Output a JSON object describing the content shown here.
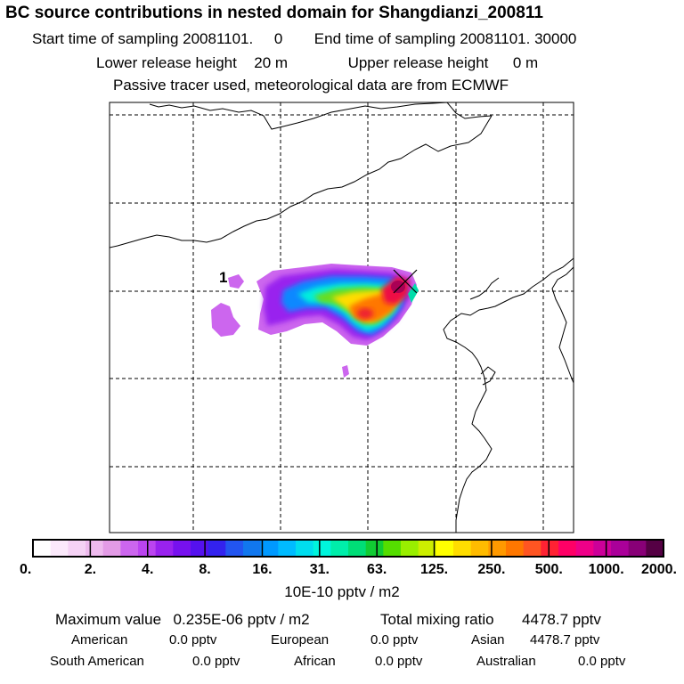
{
  "header": {
    "title": "BC  source contributions in nested domain for Shangdianzi_200811",
    "start_label": "Start time of sampling",
    "start_value": "20081101.     0",
    "end_label": "End time of sampling",
    "end_value": "20081101. 30000",
    "lower_label": "Lower release height",
    "lower_value": "20 m",
    "upper_label": "Upper release height",
    "upper_value": "0 m",
    "tracer_note": "Passive tracer used, meteorological data are from ECMWF"
  },
  "colors": {
    "bins": [
      "#ffffff",
      "#fbe9fb",
      "#f5d2f5",
      "#eebaee",
      "#e39be6",
      "#cc66ee",
      "#bb44f0",
      "#9922ee",
      "#7711ee",
      "#5511ee",
      "#3322ee",
      "#2255f0",
      "#1177ee",
      "#0099ff",
      "#00bbff",
      "#00ddee",
      "#00f5dd",
      "#00eeaa",
      "#00dd77",
      "#11cc33",
      "#55dd00",
      "#99ee00",
      "#ccee00",
      "#ffff00",
      "#ffdd00",
      "#ffbb00",
      "#ff9900",
      "#ff7700",
      "#ff5522",
      "#ff2233",
      "#ff0066",
      "#ee0088",
      "#cc0099",
      "#aa0099",
      "#880077",
      "#550044"
    ],
    "plume_purple": "#9922ee",
    "plume_blue": "#1188ff",
    "plume_cyan": "#00eedd",
    "plume_green": "#66dd22",
    "plume_yellow": "#ffdd00",
    "plume_orange": "#ff7700",
    "plume_red": "#ee1144",
    "plume_dark": "#aa0055"
  },
  "chart_data": {
    "type": "heatmap",
    "title": "BC  source contributions in nested domain for Shangdianzi_200811",
    "colorbar": {
      "tick_labels": [
        "0.",
        "2.",
        "4.",
        "8.",
        "16.",
        "31.",
        "63.",
        "125.",
        "250.",
        "500.",
        "1000.",
        "2000."
      ],
      "bin_count": 36,
      "unit": "10E-10 pptv / m2"
    },
    "marker_label": "1",
    "max_value": "0.235E-06",
    "max_unit": "pptv / m2",
    "total_mixing_ratio": "4478.7",
    "gridlines": "dashed"
  },
  "stats": {
    "max_label": "Maximum value",
    "max_value": "0.235E-06 pptv / m2",
    "total_label": "Total mixing ratio",
    "total_value": "4478.7 pptv",
    "regions": [
      {
        "name": "American",
        "value": "0.0 pptv"
      },
      {
        "name": "European",
        "value": "0.0 pptv"
      },
      {
        "name": "Asian",
        "value": "4478.7 pptv"
      },
      {
        "name": "South American",
        "value": "0.0 pptv"
      },
      {
        "name": "African",
        "value": "0.0 pptv"
      },
      {
        "name": "Australian",
        "value": "0.0 pptv"
      }
    ]
  }
}
